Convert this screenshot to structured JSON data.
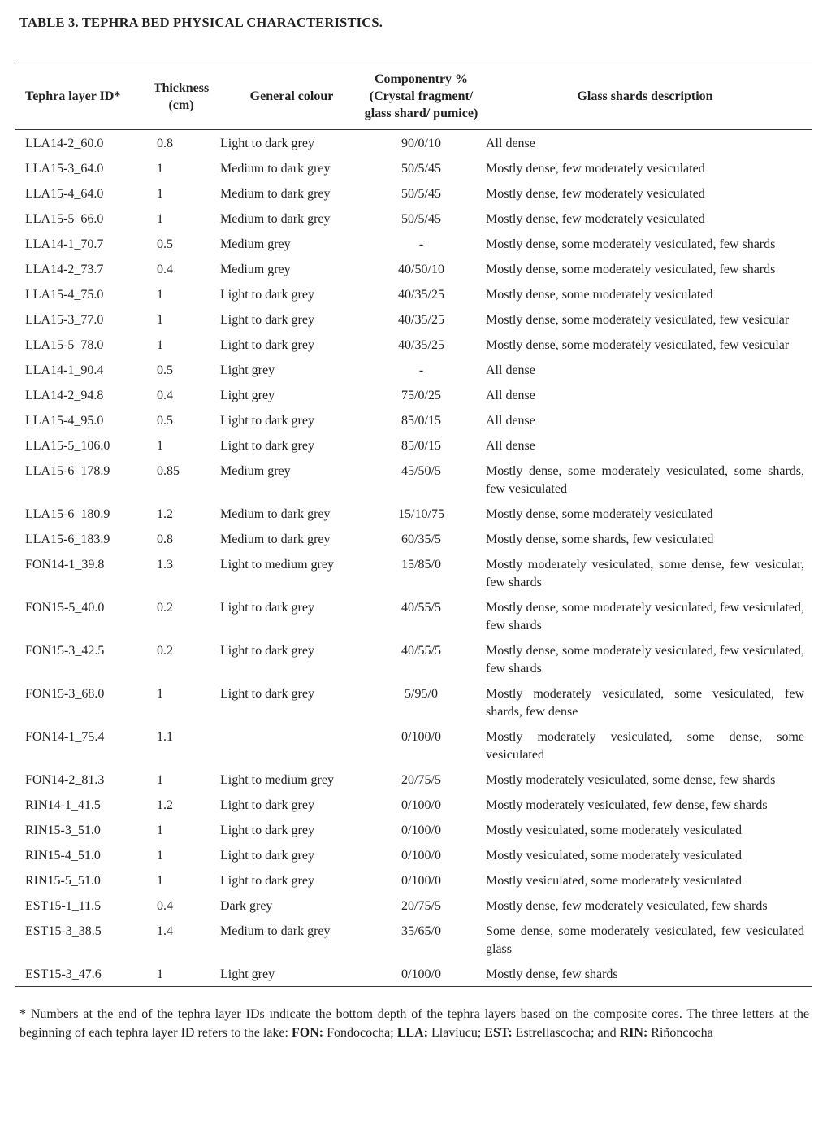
{
  "title": "TABLE 3. TEPHRA BED PHYSICAL CHARACTERISTICS.",
  "headers": {
    "id": "Tephra layer ID*",
    "thickness": "Thickness (cm)",
    "colour": "General colour",
    "componentry": "Componentry % (Crystal fragment/ glass shard/ pumice)",
    "description": "Glass shards description"
  },
  "rows": [
    [
      "LLA14-2_60.0",
      "0.8",
      "Light to dark grey",
      "90/0/10",
      "All dense"
    ],
    [
      "LLA15-3_64.0",
      "1",
      "Medium to dark grey",
      "50/5/45",
      "Mostly dense, few moderately vesiculated"
    ],
    [
      "LLA15-4_64.0",
      "1",
      "Medium to dark grey",
      "50/5/45",
      "Mostly dense, few moderately vesiculated"
    ],
    [
      "LLA15-5_66.0",
      "1",
      "Medium to dark grey",
      "50/5/45",
      "Mostly dense, few moderately vesiculated"
    ],
    [
      "LLA14-1_70.7",
      "0.5",
      "Medium grey",
      "-",
      "Mostly dense, some moderately vesiculated, few shards"
    ],
    [
      "LLA14-2_73.7",
      "0.4",
      "Medium grey",
      "40/50/10",
      "Mostly dense, some moderately vesiculated, few shards"
    ],
    [
      "LLA15-4_75.0",
      "1",
      "Light to dark grey",
      "40/35/25",
      "Mostly dense, some moderately vesiculated"
    ],
    [
      "LLA15-3_77.0",
      "1",
      "Light to dark grey",
      "40/35/25",
      "Mostly dense, some moderately vesiculated, few vesicular"
    ],
    [
      "LLA15-5_78.0",
      "1",
      "Light to dark grey",
      "40/35/25",
      "Mostly dense, some moderately vesiculated, few vesicular"
    ],
    [
      "LLA14-1_90.4",
      "0.5",
      "Light grey",
      "-",
      "All dense"
    ],
    [
      "LLA14-2_94.8",
      "0.4",
      "Light grey",
      "75/0/25",
      "All dense"
    ],
    [
      "LLA15-4_95.0",
      "0.5",
      "Light to dark grey",
      "85/0/15",
      "All dense"
    ],
    [
      "LLA15-5_106.0",
      "1",
      "Light to dark grey",
      "85/0/15",
      "All dense"
    ],
    [
      "LLA15-6_178.9",
      "0.85",
      "Medium grey",
      "45/50/5",
      "Mostly dense, some moderately vesiculated, some shards, few vesiculated"
    ],
    [
      "LLA15-6_180.9",
      "1.2",
      "Medium to dark grey",
      "15/10/75",
      "Mostly dense, some moderately vesiculated"
    ],
    [
      "LLA15-6_183.9",
      "0.8",
      "Medium to dark grey",
      "60/35/5",
      "Mostly dense, some shards, few vesiculated"
    ],
    [
      "FON14-1_39.8",
      "1.3",
      "Light to medium grey",
      "15/85/0",
      "Mostly moderately vesiculated, some dense, few vesicular, few shards"
    ],
    [
      "FON15-5_40.0",
      "0.2",
      "Light to dark grey",
      "40/55/5",
      "Mostly dense, some moderately vesiculated, few vesiculated, few shards"
    ],
    [
      "FON15-3_42.5",
      "0.2",
      "Light to dark grey",
      "40/55/5",
      "Mostly dense, some moderately vesiculated, few vesiculated, few shards"
    ],
    [
      "FON15-3_68.0",
      "1",
      "Light to dark grey",
      "5/95/0",
      "Mostly moderately vesiculated, some vesiculated, few shards, few dense"
    ],
    [
      "FON14-1_75.4",
      "1.1",
      "",
      "0/100/0",
      "Mostly moderately vesiculated, some dense, some vesiculated"
    ],
    [
      "FON14-2_81.3",
      "1",
      "Light to medium grey",
      "20/75/5",
      "Mostly moderately vesiculated, some dense, few shards"
    ],
    [
      "RIN14-1_41.5",
      "1.2",
      "Light to dark grey",
      "0/100/0",
      "Mostly moderately vesiculated, few dense, few shards"
    ],
    [
      "RIN15-3_51.0",
      "1",
      "Light to dark grey",
      "0/100/0",
      "Mostly vesiculated, some moderately vesiculated"
    ],
    [
      "RIN15-4_51.0",
      "1",
      "Light to dark grey",
      "0/100/0",
      "Mostly vesiculated, some moderately vesiculated"
    ],
    [
      "RIN15-5_51.0",
      "1",
      "Light to dark grey",
      "0/100/0",
      "Mostly vesiculated, some moderately vesiculated"
    ],
    [
      "EST15-1_11.5",
      "0.4",
      "Dark grey",
      "20/75/5",
      "Mostly dense, few moderately vesiculated, few shards"
    ],
    [
      "EST15-3_38.5",
      "1.4",
      "Medium to dark grey",
      "35/65/0",
      "Some dense, some moderately vesiculated, few vesiculated glass"
    ],
    [
      "EST15-3_47.6",
      "1",
      "Light grey",
      "0/100/0",
      "Mostly dense, few shards"
    ]
  ],
  "footnote": {
    "intro": "* Numbers at the end of the tephra layer IDs indicate the bottom depth of the tephra layers based on the composite cores. The three letters at the beginning of each tephra layer ID refers to the lake: ",
    "fon_code": "FON:",
    "fon_name": " Fondococha; ",
    "lla_code": "LLA:",
    "lla_name": " Llaviucu; ",
    "est_code": "EST:",
    "est_name": " Estrellascocha; and ",
    "rin_code": "RIN:",
    "rin_name": " Riñoncocha"
  }
}
